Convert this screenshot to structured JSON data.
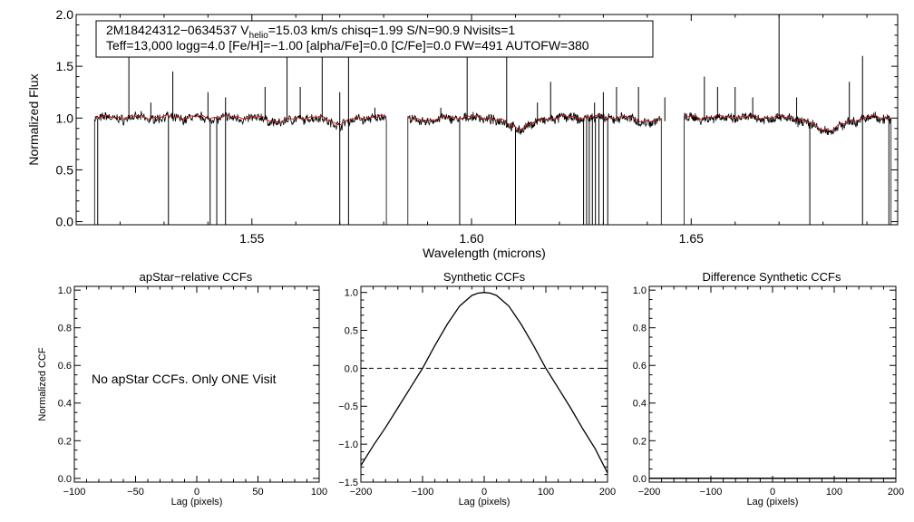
{
  "chart_data": [
    {
      "type": "line",
      "name": "spectrum",
      "xlabel": "Wavelength (microns)",
      "ylabel": "Normalized Flux",
      "xlim": [
        1.51,
        1.697
      ],
      "ylim": [
        -0.03,
        2.0
      ],
      "xticks": [
        1.55,
        1.6,
        1.65
      ],
      "xtick_labels": [
        "1.55",
        "1.60",
        "1.65"
      ],
      "yticks": [
        0.0,
        0.5,
        1.0,
        1.5,
        2.0
      ],
      "ytick_labels": [
        "0.0",
        "0.5",
        "1.0",
        "1.5",
        "2.0"
      ],
      "chips": [
        [
          1.5142,
          1.5806
        ],
        [
          1.5855,
          1.6432
        ],
        [
          1.6484,
          1.6955
        ]
      ],
      "baseline_flux": 1.0,
      "annotation": {
        "line1_a": "2M18424312−0634537  V",
        "line1_sub": "helio",
        "line1_b": "=15.03 km/s  chisq=1.99  S/N=90.9  Nvisits=1",
        "line2": "Teff=13,000 logg=4.0 [Fe/H]=−1.00 [alpha/Fe]=0.0 [C/Fe]=0.0 FW=491 AUTOFW=380"
      },
      "series": [
        {
          "name": "observed",
          "color": "#000000"
        },
        {
          "name": "model",
          "color": "#cc2222"
        }
      ],
      "absorption_lines": [
        {
          "x": 1.5563,
          "depth": 0.04,
          "width": 0.0025
        },
        {
          "x": 1.57,
          "depth": 0.06,
          "width": 0.0022
        },
        {
          "x": 1.589,
          "depth": 0.03,
          "width": 0.003
        },
        {
          "x": 1.611,
          "depth": 0.1,
          "width": 0.003
        },
        {
          "x": 1.641,
          "depth": 0.04,
          "width": 0.003
        },
        {
          "x": 1.681,
          "depth": 0.12,
          "width": 0.0035
        }
      ],
      "emission_spikes": [
        {
          "x": 1.522,
          "y": 1.7
        },
        {
          "x": 1.527,
          "y": 1.15
        },
        {
          "x": 1.532,
          "y": 1.45
        },
        {
          "x": 1.54,
          "y": 1.25
        },
        {
          "x": 1.544,
          "y": 1.2
        },
        {
          "x": 1.553,
          "y": 1.3
        },
        {
          "x": 1.558,
          "y": 1.6
        },
        {
          "x": 1.561,
          "y": 1.3
        },
        {
          "x": 1.566,
          "y": 2.0
        },
        {
          "x": 1.57,
          "y": 1.25
        },
        {
          "x": 1.572,
          "y": 1.7
        },
        {
          "x": 1.578,
          "y": 1.1
        },
        {
          "x": 1.593,
          "y": 1.1
        },
        {
          "x": 1.599,
          "y": 1.65
        },
        {
          "x": 1.608,
          "y": 1.6
        },
        {
          "x": 1.615,
          "y": 1.15
        },
        {
          "x": 1.618,
          "y": 1.35
        },
        {
          "x": 1.628,
          "y": 1.15
        },
        {
          "x": 1.63,
          "y": 1.25
        },
        {
          "x": 1.633,
          "y": 1.3
        },
        {
          "x": 1.638,
          "y": 1.3
        },
        {
          "x": 1.644,
          "y": 1.2
        },
        {
          "x": 1.653,
          "y": 1.4
        },
        {
          "x": 1.656,
          "y": 1.3
        },
        {
          "x": 1.66,
          "y": 1.3
        },
        {
          "x": 1.664,
          "y": 1.2
        },
        {
          "x": 1.67,
          "y": 2.0
        },
        {
          "x": 1.674,
          "y": 1.2
        },
        {
          "x": 1.686,
          "y": 1.35
        },
        {
          "x": 1.689,
          "y": 1.6
        }
      ],
      "drop_lines": [
        1.5149,
        1.531,
        1.5405,
        1.542,
        1.544,
        1.57,
        1.572,
        1.5973,
        1.61,
        1.6255,
        1.6262,
        1.6268,
        1.6275,
        1.6282,
        1.629,
        1.63,
        1.631,
        1.677,
        1.689,
        1.695
      ]
    },
    {
      "type": "line",
      "name": "apstar_ccf",
      "title": "apStar−relative CCFs",
      "xlabel": "Lag (pixels)",
      "ylabel": "Normalized CCF",
      "xlim": [
        -100,
        100
      ],
      "ylim": [
        -0.02,
        1.02
      ],
      "xticks": [
        -100,
        -50,
        0,
        50,
        100
      ],
      "xtick_labels": [
        "−100",
        "−50",
        "0",
        "50",
        "100"
      ],
      "yticks": [
        0.0,
        0.2,
        0.4,
        0.6,
        0.8,
        1.0
      ],
      "ytick_labels": [
        "0.0",
        "0.2",
        "0.4",
        "0.6",
        "0.8",
        "1.0"
      ],
      "message": "No apStar CCFs.  Only ONE Visit",
      "series": []
    },
    {
      "type": "line",
      "name": "synthetic_ccf",
      "title": "Synthetic CCFs",
      "xlabel": "Lag (pixels)",
      "ylabel": "",
      "xlim": [
        -200,
        200
      ],
      "ylim": [
        -1.5,
        1.08
      ],
      "xticks": [
        -200,
        -100,
        0,
        100,
        200
      ],
      "xtick_labels": [
        "−200",
        "−100",
        "0",
        "100",
        "200"
      ],
      "yticks": [
        -1.5,
        -1.0,
        -0.5,
        0.0,
        0.5,
        1.0
      ],
      "ytick_labels": [
        "−1.5",
        "−1.0",
        "−0.5",
        "0.0",
        "0.5",
        "1.0"
      ],
      "hline": 0.0,
      "series": [
        {
          "name": "ccf",
          "x": [
            -200,
            -180,
            -160,
            -140,
            -120,
            -100,
            -80,
            -60,
            -40,
            -20,
            -10,
            0,
            10,
            20,
            40,
            60,
            80,
            100,
            120,
            140,
            160,
            180,
            200
          ],
          "y": [
            -1.28,
            -1.02,
            -0.78,
            -0.52,
            -0.26,
            0.0,
            0.3,
            0.58,
            0.82,
            0.96,
            0.99,
            1.0,
            0.99,
            0.96,
            0.82,
            0.58,
            0.3,
            0.0,
            -0.26,
            -0.52,
            -0.8,
            -1.06,
            -1.38
          ]
        }
      ]
    },
    {
      "type": "line",
      "name": "difference_ccf",
      "title": "Difference Synthetic CCFs",
      "xlabel": "Lag (pixels)",
      "ylabel": "",
      "xlim": [
        -200,
        200
      ],
      "ylim": [
        -0.02,
        1.02
      ],
      "xticks": [
        -200,
        -100,
        0,
        100,
        200
      ],
      "xtick_labels": [
        "−200",
        "−100",
        "0",
        "100",
        "200"
      ],
      "yticks": [
        0.0,
        0.2,
        0.4,
        0.6,
        0.8,
        1.0
      ],
      "ytick_labels": [
        "0.0",
        "0.2",
        "0.4",
        "0.6",
        "0.8",
        "1.0"
      ],
      "series": [
        {
          "name": "difference",
          "x": [
            -200,
            200
          ],
          "y": [
            0.0,
            0.0
          ]
        }
      ]
    }
  ]
}
